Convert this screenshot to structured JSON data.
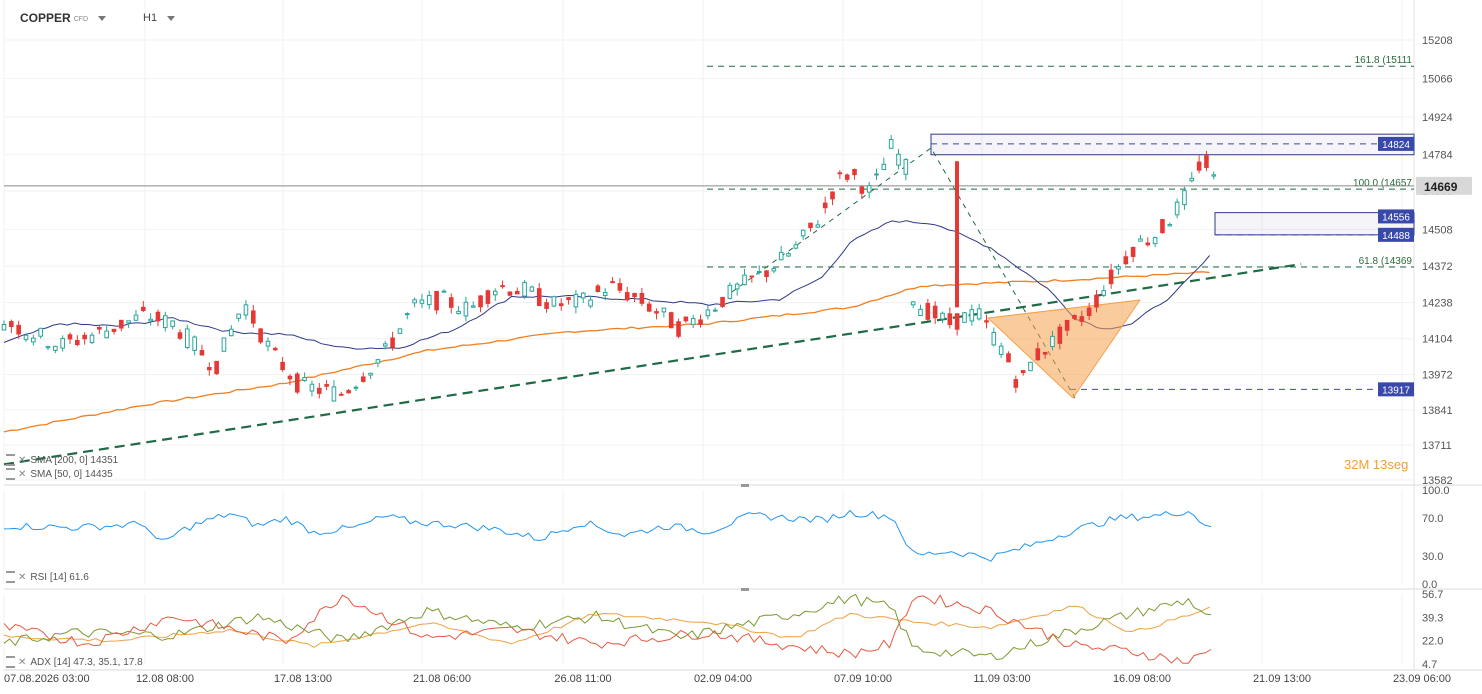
{
  "header": {
    "symbol": "COPPER",
    "instrument_type": "CFD",
    "timeframe": "H1"
  },
  "price_axis": [
    "15208",
    "15066",
    "14924",
    "14784",
    "14650",
    "14508",
    "14372",
    "14238",
    "14104",
    "13972",
    "13841",
    "13711",
    "13582"
  ],
  "current_price": "14669",
  "level_badges": [
    "14824",
    "14556",
    "14488",
    "13917"
  ],
  "fib_labels": [
    "161.8 (15111",
    "100.0 (14657",
    "61.8 (14369"
  ],
  "indicators": {
    "sma200": "SMA [200, 0] 14351",
    "sma50": "SMA [50, 0] 14435",
    "rsi": "RSI [14] 61.6",
    "adx": "ADX [14] 47.3, 35.1, 17.8"
  },
  "rsi_axis": [
    "100.0",
    "70.0",
    "30.0",
    "0.0"
  ],
  "adx_axis": [
    "56.7",
    "39.3",
    "22.0",
    "4.7"
  ],
  "time_axis": [
    "07.08.2026 03:00",
    "12.08 08:00",
    "17.08 13:00",
    "21.08 06:00",
    "26.08 11:00",
    "02.09 04:00",
    "07.09 10:00",
    "11.09 03:00",
    "16.09 08:00",
    "21.09 13:00",
    "23.09 06:00"
  ],
  "timer": {
    "minutes": "32M",
    "seconds": "13seg"
  },
  "colors": {
    "bull": "#26a69a",
    "bear": "#e53935",
    "sma200": "#f07f22",
    "sma50": "#2e3a87",
    "trend": "#1e6b45",
    "level_box": "#2e3a87",
    "badge": "#3949ab",
    "current": "#8a8a8a",
    "rsi": "#2196f3",
    "adx_main": "#f0a040",
    "adx_plus": "#7a9a30",
    "adx_minus": "#e55a40",
    "pattern": "#f5a04a"
  },
  "chart_data": {
    "type": "candlestick",
    "symbol": "COPPER",
    "timeframe": "H1",
    "y_range": [
      13582,
      15208
    ],
    "close_path": [
      [
        0,
        14170
      ],
      [
        0.04,
        14080
      ],
      [
        0.07,
        14130
      ],
      [
        0.1,
        14190
      ],
      [
        0.12,
        14160
      ],
      [
        0.15,
        14000
      ],
      [
        0.17,
        14240
      ],
      [
        0.19,
        14050
      ],
      [
        0.21,
        13930
      ],
      [
        0.24,
        13900
      ],
      [
        0.27,
        14050
      ],
      [
        0.29,
        14220
      ],
      [
        0.31,
        14250
      ],
      [
        0.33,
        14210
      ],
      [
        0.35,
        14300
      ],
      [
        0.37,
        14280
      ],
      [
        0.39,
        14230
      ],
      [
        0.41,
        14240
      ],
      [
        0.43,
        14300
      ],
      [
        0.45,
        14250
      ],
      [
        0.47,
        14180
      ],
      [
        0.48,
        14140
      ],
      [
        0.5,
        14210
      ],
      [
        0.52,
        14290
      ],
      [
        0.54,
        14350
      ],
      [
        0.56,
        14430
      ],
      [
        0.58,
        14560
      ],
      [
        0.59,
        14680
      ],
      [
        0.6,
        14720
      ],
      [
        0.615,
        14640
      ],
      [
        0.63,
        14820
      ],
      [
        0.64,
        14730
      ],
      [
        0.645,
        14240
      ],
      [
        0.67,
        14160
      ],
      [
        0.69,
        14200
      ],
      [
        0.71,
        14050
      ],
      [
        0.72,
        13930
      ],
      [
        0.73,
        14030
      ],
      [
        0.75,
        14120
      ],
      [
        0.77,
        14210
      ],
      [
        0.78,
        14290
      ],
      [
        0.8,
        14440
      ],
      [
        0.82,
        14500
      ],
      [
        0.84,
        14640
      ],
      [
        0.85,
        14780
      ],
      [
        0.86,
        14669
      ]
    ],
    "sma200_path": [
      [
        0,
        13760
      ],
      [
        0.1,
        13860
      ],
      [
        0.2,
        13940
      ],
      [
        0.3,
        14060
      ],
      [
        0.4,
        14130
      ],
      [
        0.5,
        14160
      ],
      [
        0.6,
        14220
      ],
      [
        0.65,
        14300
      ],
      [
        0.75,
        14320
      ],
      [
        0.86,
        14351
      ]
    ],
    "sma50_path": [
      [
        0,
        14090
      ],
      [
        0.04,
        14160
      ],
      [
        0.08,
        14150
      ],
      [
        0.12,
        14180
      ],
      [
        0.16,
        14130
      ],
      [
        0.2,
        14120
      ],
      [
        0.24,
        14070
      ],
      [
        0.28,
        14070
      ],
      [
        0.32,
        14140
      ],
      [
        0.36,
        14260
      ],
      [
        0.4,
        14260
      ],
      [
        0.45,
        14250
      ],
      [
        0.5,
        14230
      ],
      [
        0.55,
        14250
      ],
      [
        0.58,
        14330
      ],
      [
        0.6,
        14460
      ],
      [
        0.63,
        14540
      ],
      [
        0.66,
        14530
      ],
      [
        0.7,
        14440
      ],
      [
        0.74,
        14290
      ],
      [
        0.76,
        14180
      ],
      [
        0.78,
        14140
      ],
      [
        0.8,
        14160
      ],
      [
        0.83,
        14270
      ],
      [
        0.86,
        14435
      ]
    ],
    "trendline": [
      [
        0,
        13640
      ],
      [
        0.92,
        14380
      ]
    ],
    "fib_levels": [
      {
        "label": "161.8",
        "value": 15111
      },
      {
        "label": "100.0",
        "value": 14657
      },
      {
        "label": "61.8",
        "value": 14369
      }
    ],
    "zones": [
      {
        "top": 14860,
        "bottom": 14784
      },
      {
        "top": 14570,
        "bottom": 14488
      }
    ],
    "levels": [
      14824,
      14556,
      14488,
      13917
    ],
    "current_price": 14669,
    "pattern": "head-and-shoulders (inverted) shaded region near 13917 low",
    "rsi": {
      "range": [
        0,
        100
      ],
      "last": 61.6,
      "levels": [
        30,
        70
      ],
      "path": [
        [
          0,
          62
        ],
        [
          0.05,
          60
        ],
        [
          0.1,
          64
        ],
        [
          0.11,
          42
        ],
        [
          0.13,
          60
        ],
        [
          0.16,
          75
        ],
        [
          0.18,
          62
        ],
        [
          0.2,
          70
        ],
        [
          0.22,
          55
        ],
        [
          0.25,
          60
        ],
        [
          0.27,
          72
        ],
        [
          0.29,
          66
        ],
        [
          0.32,
          63
        ],
        [
          0.35,
          58
        ],
        [
          0.38,
          48
        ],
        [
          0.41,
          66
        ],
        [
          0.44,
          52
        ],
        [
          0.47,
          62
        ],
        [
          0.5,
          56
        ],
        [
          0.53,
          73
        ],
        [
          0.56,
          70
        ],
        [
          0.58,
          68
        ],
        [
          0.6,
          76
        ],
        [
          0.63,
          72
        ],
        [
          0.645,
          30
        ],
        [
          0.67,
          35
        ],
        [
          0.7,
          28
        ],
        [
          0.73,
          42
        ],
        [
          0.76,
          58
        ],
        [
          0.79,
          70
        ],
        [
          0.82,
          73
        ],
        [
          0.84,
          78
        ],
        [
          0.85,
          65
        ],
        [
          0.86,
          61.6
        ]
      ]
    },
    "adx": {
      "range": [
        4.7,
        56.7
      ],
      "last": [
        47.3,
        35.1,
        17.8
      ],
      "adx_path": [
        [
          0,
          25
        ],
        [
          0.08,
          22
        ],
        [
          0.16,
          30
        ],
        [
          0.22,
          18
        ],
        [
          0.3,
          35
        ],
        [
          0.36,
          20
        ],
        [
          0.42,
          42
        ],
        [
          0.5,
          36
        ],
        [
          0.56,
          24
        ],
        [
          0.6,
          42
        ],
        [
          0.645,
          36
        ],
        [
          0.7,
          32
        ],
        [
          0.76,
          48
        ],
        [
          0.8,
          28
        ],
        [
          0.86,
          47.3
        ]
      ],
      "plus_di_path": [
        [
          0,
          20
        ],
        [
          0.05,
          28
        ],
        [
          0.12,
          26
        ],
        [
          0.18,
          40
        ],
        [
          0.24,
          22
        ],
        [
          0.3,
          44
        ],
        [
          0.36,
          32
        ],
        [
          0.42,
          40
        ],
        [
          0.48,
          24
        ],
        [
          0.56,
          42
        ],
        [
          0.6,
          54
        ],
        [
          0.63,
          46
        ],
        [
          0.645,
          16
        ],
        [
          0.7,
          10
        ],
        [
          0.76,
          30
        ],
        [
          0.8,
          42
        ],
        [
          0.84,
          52
        ],
        [
          0.86,
          35.1
        ]
      ],
      "minus_di_path": [
        [
          0,
          32
        ],
        [
          0.06,
          20
        ],
        [
          0.12,
          40
        ],
        [
          0.2,
          22
        ],
        [
          0.24,
          56
        ],
        [
          0.3,
          24
        ],
        [
          0.36,
          30
        ],
        [
          0.42,
          20
        ],
        [
          0.5,
          28
        ],
        [
          0.56,
          18
        ],
        [
          0.6,
          12
        ],
        [
          0.63,
          20
        ],
        [
          0.645,
          56
        ],
        [
          0.7,
          44
        ],
        [
          0.76,
          18
        ],
        [
          0.8,
          14
        ],
        [
          0.84,
          6
        ],
        [
          0.86,
          17.8
        ]
      ]
    }
  }
}
